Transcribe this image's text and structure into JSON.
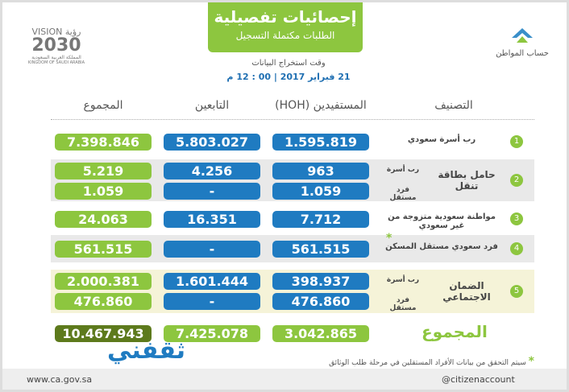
{
  "header": {
    "title": "إحصائيات تفصيلية",
    "subtitle": "الطلبات مكتملة التسجيل",
    "time_label": "وقت استخراج البيانات",
    "date": "21 فبراير 2017 | 00 : 12 م"
  },
  "logos": {
    "vision": "VISION",
    "vision_ar": "رؤية",
    "year": "2030",
    "kingdom_ar": "المملكة العربية السعودية",
    "kingdom_en": "KINGDOM OF SAUDI ARABIA",
    "account": "حساب المواطن"
  },
  "table": {
    "columns": [
      "التصنيف",
      "المستفيدين (HOH)",
      "التابعين",
      "المجموع"
    ],
    "rows": [
      {
        "number": "1",
        "label": "رب أسرة سعودي",
        "lines": [
          {
            "hoh": "1.595.819",
            "dependents": "5.803.027",
            "total": "7.398.846"
          }
        ]
      },
      {
        "number": "2",
        "label": "حامل بطاقة تنقل",
        "lines": [
          {
            "sub": "رب أسرة",
            "hoh": "963",
            "dependents": "4.256",
            "total": "5.219"
          },
          {
            "sub": "فرد مستقل",
            "hoh": "1.059",
            "dependents": "-",
            "total": "1.059"
          }
        ]
      },
      {
        "number": "3",
        "label": "مواطنة سعودية متزوجة من غير سعودي",
        "lines": [
          {
            "hoh": "7.712",
            "dependents": "16.351",
            "total": "24.063"
          }
        ]
      },
      {
        "number": "4",
        "label": "فرد سعودي مستقل المسكن",
        "note_mark": "*",
        "lines": [
          {
            "hoh": "561.515",
            "dependents": "-",
            "total": "561.515"
          }
        ]
      },
      {
        "number": "5",
        "label": "الضمان الاجتماعي",
        "lines": [
          {
            "sub": "رب أسرة",
            "hoh": "398.937",
            "dependents": "1.601.444",
            "total": "2.000.381"
          },
          {
            "sub": "فرد مستقل",
            "hoh": "476.860",
            "dependents": "-",
            "total": "476.860"
          }
        ]
      }
    ],
    "total": {
      "label": "المجموع",
      "hoh": "3.042.865",
      "dependents": "7.425.078",
      "total": "10.467.943"
    }
  },
  "footnote": {
    "mark": "*",
    "text": "سيتم التحقق من بيانات الأفراد المستقلين في مرحلة طلب الوثائق"
  },
  "footer": {
    "website": "www.ca.gov.sa",
    "social": "@citizenaccount"
  },
  "watermark": "ثقفني"
}
